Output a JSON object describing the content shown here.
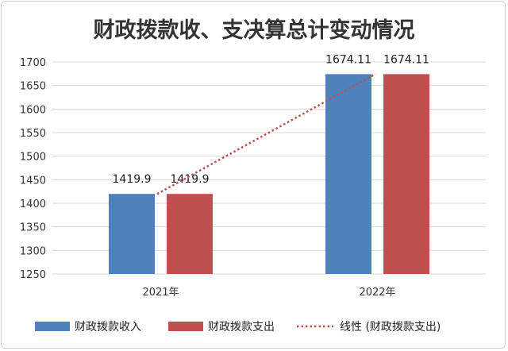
{
  "chart_data": {
    "type": "bar",
    "title": "财政拨款收、支决算总计变动情况",
    "categories": [
      "2021年",
      "2022年"
    ],
    "series": [
      {
        "name": "财政拨款收入",
        "values": [
          1419.9,
          1674.11
        ],
        "labels": [
          "1419.9",
          "1674.11"
        ],
        "color": "#4f81bd"
      },
      {
        "name": "财政拨款支出",
        "values": [
          1419.9,
          1674.11
        ],
        "labels": [
          "1419.9",
          "1674.11"
        ],
        "color": "#c0504d"
      }
    ],
    "trendline": {
      "name": "线性 (财政拨款支出)",
      "color": "#c0504d",
      "style": "dotted"
    },
    "ylim": [
      1250,
      1700
    ],
    "yticks": [
      1250,
      1300,
      1350,
      1400,
      1450,
      1500,
      1550,
      1600,
      1650,
      1700
    ],
    "grid": true,
    "legend": "bottom"
  }
}
